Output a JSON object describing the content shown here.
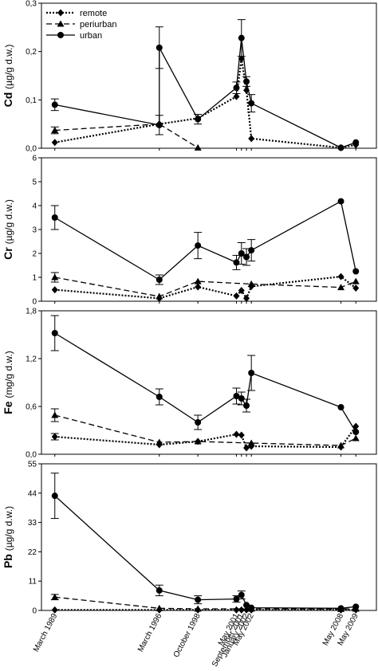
{
  "chart_data": {
    "type": "line",
    "shared_x_categories": [
      "March 1989",
      "March 1996",
      "October 1998",
      "May 2001",
      "September 2001",
      "January 2002",
      "May 2002",
      "May 2008",
      "May 2009"
    ],
    "legend": {
      "placement": "top-left of first panel",
      "entries": [
        {
          "name": "remote",
          "line_style": "dotted",
          "marker": "diamond"
        },
        {
          "name": "periurban",
          "line_style": "dashed",
          "marker": "triangle"
        },
        {
          "name": "urban",
          "line_style": "solid",
          "marker": "circle"
        }
      ]
    },
    "panels": [
      {
        "id": "cd",
        "ylabel_bold": "Cd",
        "ylabel_unit": "(µg/g d.w.)",
        "ylim": [
          0,
          0.3
        ],
        "yticks": [
          0,
          0.1,
          0.2,
          0.3
        ],
        "ytick_labels": [
          "0,0",
          "0,1",
          "0,2",
          "0,3"
        ],
        "series": [
          {
            "name": "remote",
            "points": [
              {
                "x": "1989-03-15",
                "y": 0.012
              },
              {
                "x": "1996-03-15",
                "y": 0.05
              },
              {
                "x": "1998-10-15",
                "y": 0.062
              },
              {
                "x": "2001-05-15",
                "y": 0.107
              },
              {
                "x": "2001-09-15",
                "y": 0.185
              },
              {
                "x": "2002-01-15",
                "y": 0.12
              },
              {
                "x": "2002-05-15",
                "y": 0.02
              },
              {
                "x": "2008-05-15",
                "y": 0.001
              },
              {
                "x": "2009-05-15",
                "y": 0.007
              }
            ]
          },
          {
            "name": "periurban",
            "points": [
              {
                "x": "1989-03-15",
                "y": 0.037,
                "err": 0.007
              },
              {
                "x": "1996-03-15",
                "y": 0.05
              },
              {
                "x": "1998-10-15",
                "y": 0.001
              }
            ]
          },
          {
            "name": "urban",
            "points": [
              {
                "x": "1989-03-15",
                "y": 0.09,
                "err": 0.012
              },
              {
                "x": "1996-03-15",
                "y": 0.048,
                "err": 0.02
              },
              {
                "x": "1996-03-15",
                "y": 0.208,
                "err": 0.043
              },
              {
                "x": "1998-10-15",
                "y": 0.06,
                "err": 0.01
              },
              {
                "x": "2001-05-15",
                "y": 0.125,
                "err": 0.012
              },
              {
                "x": "2001-09-15",
                "y": 0.228,
                "err": 0.038
              },
              {
                "x": "2002-01-15",
                "y": 0.138,
                "err": 0.01
              },
              {
                "x": "2002-05-15",
                "y": 0.093,
                "err": 0.018
              },
              {
                "x": "2008-05-15",
                "y": 0.001
              },
              {
                "x": "2009-05-15",
                "y": 0.012
              }
            ]
          }
        ]
      },
      {
        "id": "cr",
        "ylabel_bold": "Cr",
        "ylabel_unit": "(µg/g d.w.)",
        "ylim": [
          0,
          6
        ],
        "yticks": [
          0,
          1,
          2,
          3,
          4,
          5,
          6
        ],
        "ytick_labels": [
          "0",
          "1",
          "2",
          "3",
          "4",
          "5",
          "6"
        ],
        "series": [
          {
            "name": "remote",
            "points": [
              {
                "x": "1989-03-15",
                "y": 0.48
              },
              {
                "x": "1996-03-15",
                "y": 0.12
              },
              {
                "x": "1998-10-15",
                "y": 0.6
              },
              {
                "x": "2001-05-15",
                "y": 0.22
              },
              {
                "x": "2001-09-15",
                "y": 0.45
              },
              {
                "x": "2002-01-15",
                "y": 0.12
              },
              {
                "x": "2002-05-15",
                "y": 0.62
              },
              {
                "x": "2008-05-15",
                "y": 1.03
              },
              {
                "x": "2009-05-15",
                "y": 0.55
              }
            ]
          },
          {
            "name": "periurban",
            "points": [
              {
                "x": "1989-03-15",
                "y": 1.0,
                "err": 0.2
              },
              {
                "x": "1996-03-15",
                "y": 0.2
              },
              {
                "x": "1998-10-15",
                "y": 0.83
              },
              {
                "x": "2002-05-15",
                "y": 0.72
              },
              {
                "x": "2008-05-15",
                "y": 0.58
              },
              {
                "x": "2009-05-15",
                "y": 0.83
              }
            ]
          },
          {
            "name": "urban",
            "points": [
              {
                "x": "1989-03-15",
                "y": 3.5,
                "err": 0.5
              },
              {
                "x": "1996-03-15",
                "y": 0.9,
                "err": 0.2
              },
              {
                "x": "1998-10-15",
                "y": 2.33,
                "err": 0.55
              },
              {
                "x": "2001-05-15",
                "y": 1.62,
                "err": 0.3
              },
              {
                "x": "2001-09-15",
                "y": 2.0,
                "err": 0.45
              },
              {
                "x": "2002-01-15",
                "y": 1.85,
                "err": 0.35
              },
              {
                "x": "2002-05-15",
                "y": 2.13,
                "err": 0.45
              },
              {
                "x": "2008-05-15",
                "y": 4.18
              },
              {
                "x": "2009-05-15",
                "y": 1.25
              }
            ]
          }
        ]
      },
      {
        "id": "fe",
        "ylabel_bold": "Fe",
        "ylabel_unit": "(mg/g d.w.)",
        "ylim": [
          0,
          1.8
        ],
        "yticks": [
          0,
          0.6,
          1.2,
          1.8
        ],
        "ytick_labels": [
          "0,0",
          "0,6",
          "1,2",
          "1,8"
        ],
        "series": [
          {
            "name": "remote",
            "points": [
              {
                "x": "1989-03-15",
                "y": 0.22,
                "err": 0.04
              },
              {
                "x": "1996-03-15",
                "y": 0.12
              },
              {
                "x": "1998-10-15",
                "y": 0.16
              },
              {
                "x": "2001-05-15",
                "y": 0.25
              },
              {
                "x": "2001-09-15",
                "y": 0.24
              },
              {
                "x": "2002-01-15",
                "y": 0.08
              },
              {
                "x": "2002-05-15",
                "y": 0.1
              },
              {
                "x": "2008-05-15",
                "y": 0.09
              },
              {
                "x": "2009-05-15",
                "y": 0.35
              }
            ]
          },
          {
            "name": "periurban",
            "points": [
              {
                "x": "1989-03-15",
                "y": 0.49,
                "err": 0.08
              },
              {
                "x": "1996-03-15",
                "y": 0.15
              },
              {
                "x": "1998-10-15",
                "y": 0.16
              },
              {
                "x": "2002-05-15",
                "y": 0.14
              },
              {
                "x": "2008-05-15",
                "y": 0.11
              },
              {
                "x": "2009-05-15",
                "y": 0.2
              }
            ]
          },
          {
            "name": "urban",
            "points": [
              {
                "x": "1989-03-15",
                "y": 1.52,
                "err": 0.22
              },
              {
                "x": "1996-03-15",
                "y": 0.72,
                "err": 0.1
              },
              {
                "x": "1998-10-15",
                "y": 0.4,
                "err": 0.09
              },
              {
                "x": "2001-05-15",
                "y": 0.73,
                "err": 0.1
              },
              {
                "x": "2001-09-15",
                "y": 0.7,
                "err": 0.08
              },
              {
                "x": "2002-01-15",
                "y": 0.61,
                "err": 0.08
              },
              {
                "x": "2002-05-15",
                "y": 1.02,
                "err": 0.22
              },
              {
                "x": "2008-05-15",
                "y": 0.59
              },
              {
                "x": "2009-05-15",
                "y": 0.28
              }
            ]
          }
        ]
      },
      {
        "id": "pb",
        "ylabel_bold": "Pb",
        "ylabel_unit": "(µg/g d.w.)",
        "ylim": [
          0,
          55
        ],
        "yticks": [
          0,
          11,
          22,
          33,
          44,
          55
        ],
        "ytick_labels": [
          "0",
          "11",
          "22",
          "33",
          "44",
          "55"
        ],
        "series": [
          {
            "name": "remote",
            "points": [
              {
                "x": "1989-03-15",
                "y": 0.2
              },
              {
                "x": "1996-03-15",
                "y": 0.2
              },
              {
                "x": "1998-10-15",
                "y": 0.2
              },
              {
                "x": "2001-05-15",
                "y": 0.2
              },
              {
                "x": "2001-09-15",
                "y": 0.2
              },
              {
                "x": "2002-01-15",
                "y": 0.2
              },
              {
                "x": "2002-05-15",
                "y": 0.2
              },
              {
                "x": "2008-05-15",
                "y": 0.2
              },
              {
                "x": "2009-05-15",
                "y": 0.2
              }
            ]
          },
          {
            "name": "periurban",
            "points": [
              {
                "x": "1989-03-15",
                "y": 5.0,
                "err": 1.0
              },
              {
                "x": "1996-03-15",
                "y": 0.8
              },
              {
                "x": "1998-10-15",
                "y": 0.6
              },
              {
                "x": "2002-05-15",
                "y": 0.6
              },
              {
                "x": "2008-05-15",
                "y": 0.5
              },
              {
                "x": "2009-05-15",
                "y": 0.6
              }
            ]
          },
          {
            "name": "urban",
            "points": [
              {
                "x": "1989-03-15",
                "y": 43.0,
                "err": 8.5
              },
              {
                "x": "1996-03-15",
                "y": 7.5,
                "err": 2.0
              },
              {
                "x": "1998-10-15",
                "y": 4.0,
                "err": 1.5
              },
              {
                "x": "2001-05-15",
                "y": 4.3,
                "err": 1.2
              },
              {
                "x": "2001-09-15",
                "y": 5.8,
                "err": 1.5
              },
              {
                "x": "2002-01-15",
                "y": 2.0
              },
              {
                "x": "2002-05-15",
                "y": 1.0
              },
              {
                "x": "2008-05-15",
                "y": 0.8
              },
              {
                "x": "2009-05-15",
                "y": 1.4
              }
            ]
          }
        ]
      }
    ],
    "grid": false
  }
}
